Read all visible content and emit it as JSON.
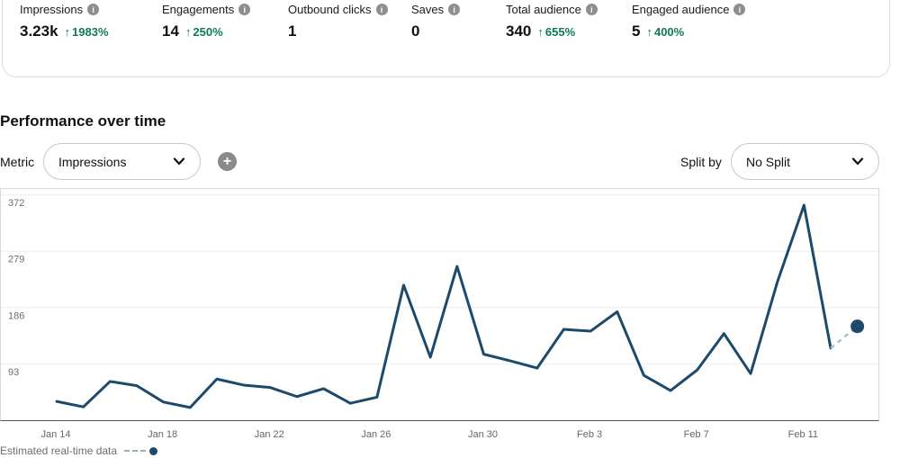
{
  "summary": {
    "up_arrow": "↑",
    "metrics": [
      {
        "label": "Impressions",
        "value": "3.23k",
        "delta": "1983%"
      },
      {
        "label": "Engagements",
        "value": "14",
        "delta": "250%"
      },
      {
        "label": "Outbound clicks",
        "value": "1"
      },
      {
        "label": "Saves",
        "value": "0"
      },
      {
        "label": "Total audience",
        "value": "340",
        "delta": "655%"
      },
      {
        "label": "Engaged audience",
        "value": "5",
        "delta": "400%"
      }
    ]
  },
  "icons": {
    "info": "i",
    "plus": "+"
  },
  "section": {
    "title": "Performance over time"
  },
  "controls": {
    "metric_label": "Metric",
    "metric_value": "Impressions",
    "split_label": "Split by",
    "split_value": "No Split"
  },
  "colors": {
    "line": "#1d4a6b",
    "grid": "#ededed",
    "axis_text": "#6d6d6d",
    "estimated_connector": "#a9bdcb",
    "positive_green": "#0e7a55",
    "icon_gray": "#8e8e8e"
  },
  "chart_data": {
    "type": "line",
    "title": "Performance over time",
    "xlabel": "",
    "ylabel": "",
    "ylim": [
      0,
      382
    ],
    "grid": "horizontal",
    "yticks": [
      93,
      186,
      279,
      372
    ],
    "categories": [
      "Jan 14",
      "Jan 15",
      "Jan 16",
      "Jan 17",
      "Jan 18",
      "Jan 19",
      "Jan 20",
      "Jan 21",
      "Jan 22",
      "Jan 23",
      "Jan 24",
      "Jan 25",
      "Jan 26",
      "Jan 27",
      "Jan 28",
      "Jan 29",
      "Jan 30",
      "Jan 31",
      "Feb 1",
      "Feb 2",
      "Feb 3",
      "Feb 4",
      "Feb 5",
      "Feb 6",
      "Feb 7",
      "Feb 8",
      "Feb 9",
      "Feb 10",
      "Feb 11",
      "Feb 12"
    ],
    "x_tick_labels": [
      "Jan 14",
      "Jan 18",
      "Jan 22",
      "Jan 26",
      "Jan 30",
      "Feb 3",
      "Feb 7",
      "Feb 11"
    ],
    "x_tick_day_indices": [
      0,
      4,
      8,
      12,
      16,
      20,
      24,
      28
    ],
    "series": [
      {
        "name": "Impressions",
        "values": [
          31,
          22,
          64,
          57,
          30,
          21,
          68,
          58,
          54,
          39,
          52,
          28,
          38,
          223,
          104,
          254,
          109,
          98,
          86,
          150,
          147,
          179,
          74,
          49,
          83,
          143,
          77,
          228,
          355,
          119
        ]
      }
    ],
    "estimated_point": {
      "category": "Feb 13",
      "value": 155
    }
  },
  "legend": {
    "estimated_label": "Estimated real-time data"
  }
}
